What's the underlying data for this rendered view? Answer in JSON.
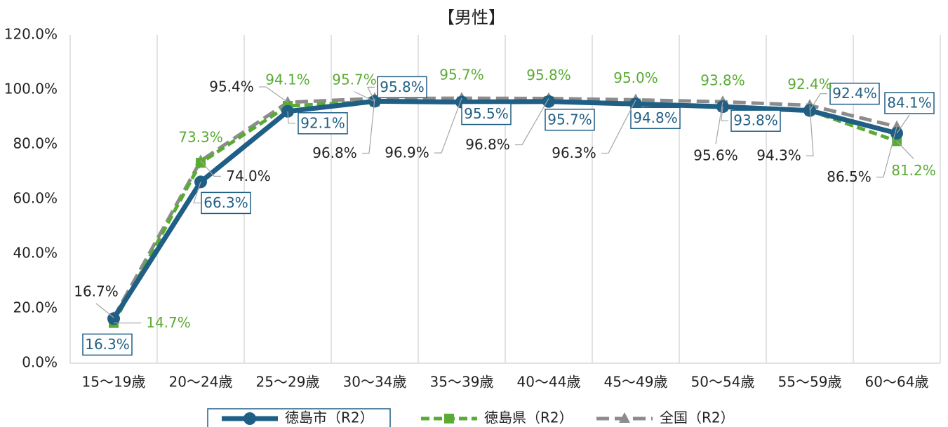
{
  "chart_data": {
    "type": "line",
    "title": "【男性】",
    "categories": [
      "15～19歳",
      "20～24歳",
      "25～29歳",
      "30～34歳",
      "35～39歳",
      "40～44歳",
      "45～49歳",
      "50～54歳",
      "55～59歳",
      "60～64歳"
    ],
    "series": [
      {
        "name": "徳島市（R2）",
        "color": "#1f5f85",
        "marker": "circle",
        "dash": "solid",
        "values": [
          16.3,
          66.3,
          92.1,
          95.8,
          95.5,
          95.7,
          94.8,
          93.8,
          92.4,
          84.1
        ],
        "value_labels": [
          "16.3%",
          "66.3%",
          "92.1%",
          "95.8%",
          "95.5%",
          "95.7%",
          "94.8%",
          "93.8%",
          "92.4%",
          "84.1%"
        ]
      },
      {
        "name": "徳島県（R2）",
        "color": "#5aab33",
        "marker": "square",
        "dash": "dashed",
        "values": [
          14.7,
          73.3,
          94.1,
          95.7,
          95.7,
          95.8,
          95.0,
          93.8,
          92.4,
          81.2
        ],
        "value_labels": [
          "14.7%",
          "73.3%",
          "94.1%",
          "95.7%",
          "95.7%",
          "95.8%",
          "95.0%",
          "93.8%",
          "92.4%",
          "81.2%"
        ]
      },
      {
        "name": "全国（R2）",
        "color": "#8c8c8c",
        "marker": "triangle",
        "dash": "dashed",
        "values": [
          16.7,
          74.0,
          95.4,
          96.8,
          96.9,
          96.8,
          96.3,
          95.6,
          94.3,
          86.5
        ],
        "value_labels": [
          "16.7%",
          "74.0%",
          "95.4%",
          "96.8%",
          "96.9%",
          "96.8%",
          "96.3%",
          "95.6%",
          "94.3%",
          "86.5%"
        ]
      }
    ],
    "ylim": [
      0,
      120
    ],
    "yticks": [
      {
        "value": 0,
        "label": "0.0%"
      },
      {
        "value": 20,
        "label": "20.0%"
      },
      {
        "value": 40,
        "label": "40.0%"
      },
      {
        "value": 60,
        "label": "60.0%"
      },
      {
        "value": 80,
        "label": "80.0%"
      },
      {
        "value": 100,
        "label": "100.0%"
      },
      {
        "value": 120,
        "label": "120.0%"
      }
    ],
    "grid": true,
    "legend": "bottom"
  }
}
